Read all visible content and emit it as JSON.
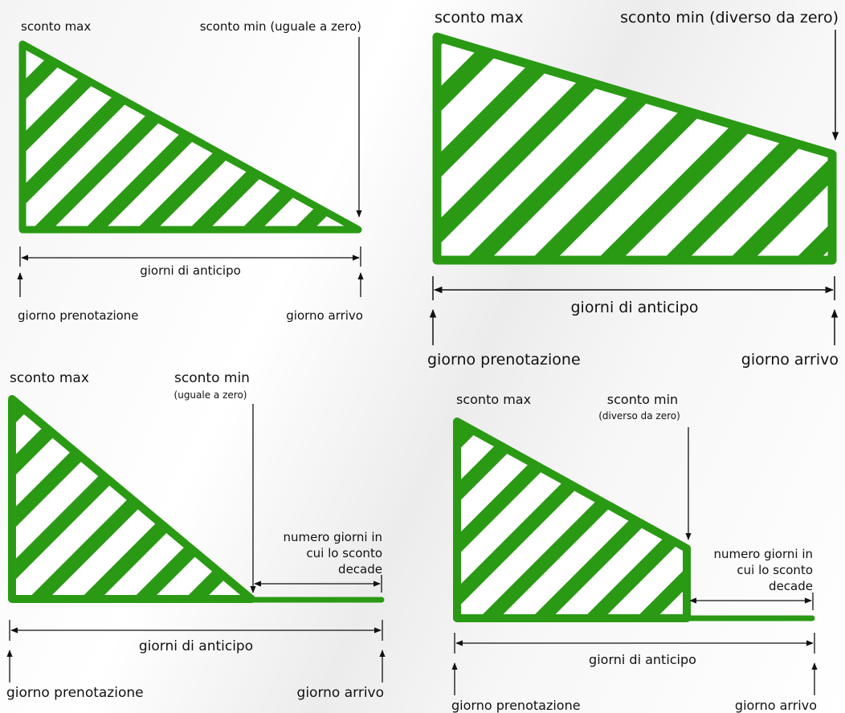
{
  "colors": {
    "green": "#2a9a14",
    "ink": "#111111",
    "hatch_bg": "#ffffff"
  },
  "diagrams": [
    {
      "id": "top-left",
      "label_max": "sconto max",
      "label_min": "sconto min (uguale a zero)",
      "label_span": "giorni di anticipo",
      "label_start": "giorno prenotazione",
      "label_end": "giorno arrivo"
    },
    {
      "id": "top-right",
      "label_max": "sconto max",
      "label_min": "sconto min (diverso da zero)",
      "label_span": "giorni di anticipo",
      "label_start": "giorno prenotazione",
      "label_end": "giorno arrivo"
    },
    {
      "id": "bottom-left",
      "label_max": "sconto max",
      "label_min": "sconto min",
      "label_min_note": "(uguale a zero)",
      "label_decay": [
        "numero giorni in",
        "cui lo sconto",
        "decade"
      ],
      "label_span": "giorni di anticipo",
      "label_start": "giorno prenotazione",
      "label_end": "giorno arrivo"
    },
    {
      "id": "bottom-right",
      "label_max": "sconto max",
      "label_min": "sconto min",
      "label_min_note": "(diverso da zero)",
      "label_decay": [
        "numero giorni in",
        "cui lo sconto",
        "decade"
      ],
      "label_span": "giorni di anticipo",
      "label_start": "giorno prenotazione",
      "label_end": "giorno arrivo"
    }
  ]
}
